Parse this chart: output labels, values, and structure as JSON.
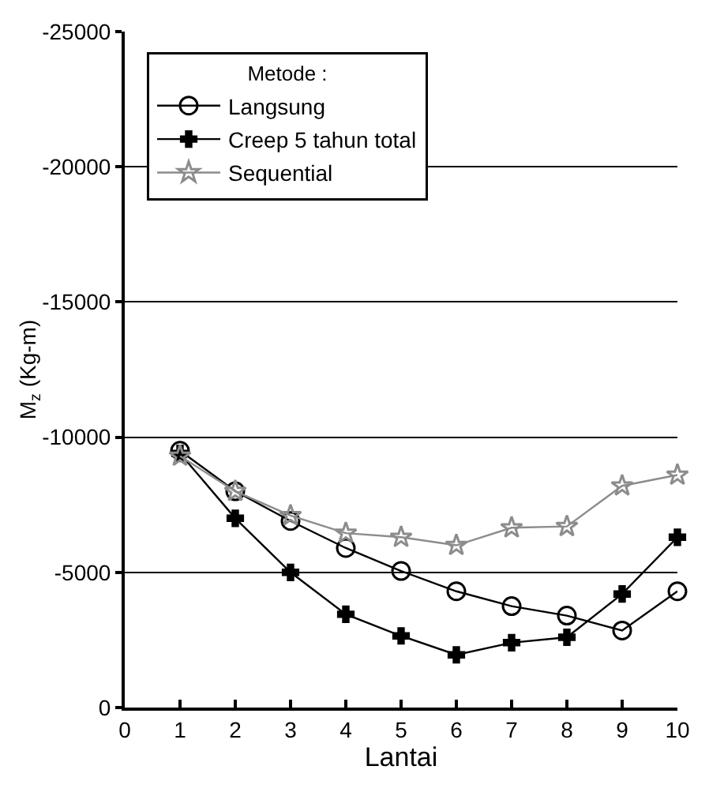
{
  "chart_data": {
    "type": "line",
    "xlabel": "Lantai",
    "ylabel": "M$_{z}$ (Kg-m)",
    "legend_title": "Metode :",
    "x": [
      1,
      2,
      3,
      4,
      5,
      6,
      7,
      8,
      9,
      10
    ],
    "series": [
      {
        "name": "Langsung",
        "color": "#000000",
        "marker": "circle",
        "values": [
          -9500,
          -8000,
          -6900,
          -5900,
          -5050,
          -4300,
          -3750,
          -3400,
          -2850,
          -4300
        ]
      },
      {
        "name": "Creep 5 tahun total",
        "color": "#000000",
        "marker": "cross",
        "values": [
          -9400,
          -7000,
          -5000,
          -3450,
          -2650,
          -1950,
          -2400,
          -2600,
          -4200,
          -6300
        ]
      },
      {
        "name": "Sequential",
        "color": "#8c8c8c",
        "marker": "star",
        "values": [
          -9300,
          -8000,
          -7100,
          -6450,
          -6300,
          -6000,
          -6650,
          -6700,
          -8200,
          -8600
        ]
      }
    ],
    "xlim": [
      0,
      10
    ],
    "xticks": [
      0,
      1,
      2,
      3,
      4,
      5,
      6,
      7,
      8,
      9,
      10
    ],
    "ylim": [
      0,
      -25000
    ],
    "yticks": [
      0,
      -5000,
      -10000,
      -15000,
      -20000,
      -25000
    ],
    "grid": "y",
    "legend": "top left",
    "line_style": "solid"
  }
}
